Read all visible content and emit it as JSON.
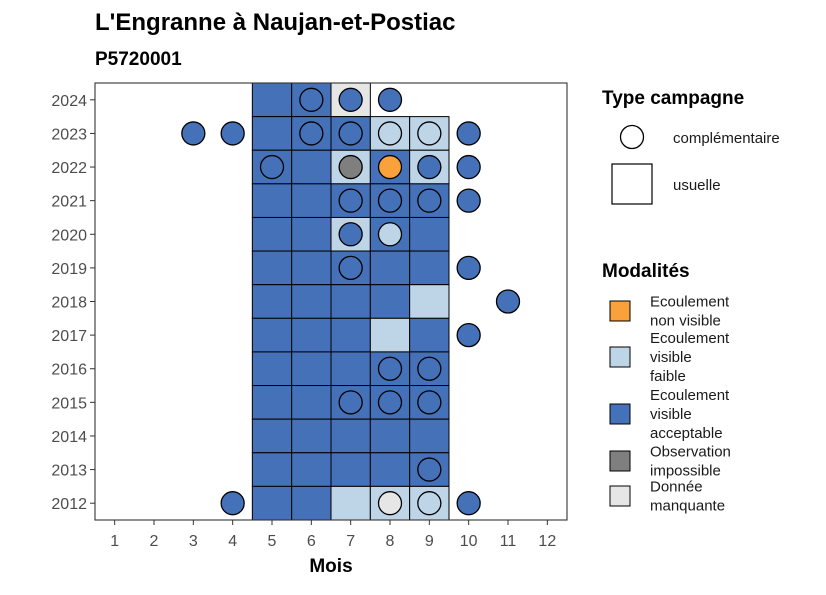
{
  "chart_data": {
    "type": "heatmap",
    "title": "L'Engranne à Naujan-et-Postiac",
    "subtitle": "P5720001",
    "xlabel": "Mois",
    "ylabel": "",
    "x_ticks": [
      1,
      2,
      3,
      4,
      5,
      6,
      7,
      8,
      9,
      10,
      11,
      12
    ],
    "y_ticks": [
      2012,
      2013,
      2014,
      2015,
      2016,
      2017,
      2018,
      2019,
      2020,
      2021,
      2022,
      2023,
      2024
    ],
    "xlim": [
      0.5,
      12.5
    ],
    "ylim": [
      2011.5,
      2024.5
    ],
    "grid": false,
    "colors": {
      "ecoulement_non_visible": "#f9a13a",
      "ecoulement_visible_faible": "#bed5e8",
      "ecoulement_visible_acceptable": "#4571b8",
      "observation_impossible": "#7f7f7f",
      "donnee_manquante": "#e6e6e6"
    },
    "legends": [
      {
        "title": "Type campagne",
        "items": [
          {
            "shape": "circle",
            "label": "complémentaire"
          },
          {
            "shape": "square",
            "label": "usuelle"
          }
        ]
      },
      {
        "title": "Modalités",
        "items": [
          {
            "key": "ecoulement_non_visible",
            "label_lines": [
              "Ecoulement",
              "non visible"
            ]
          },
          {
            "key": "ecoulement_visible_faible",
            "label_lines": [
              "Ecoulement",
              "visible",
              "faible"
            ]
          },
          {
            "key": "ecoulement_visible_acceptable",
            "label_lines": [
              "Ecoulement",
              "visible",
              "acceptable"
            ]
          },
          {
            "key": "observation_impossible",
            "label_lines": [
              "Observation",
              "impossible"
            ]
          },
          {
            "key": "donnee_manquante",
            "label_lines": [
              "Donnée",
              "manquante"
            ]
          }
        ]
      }
    ],
    "usuelle": [
      {
        "year": 2024,
        "month": 5,
        "m": "ecoulement_visible_acceptable"
      },
      {
        "year": 2024,
        "month": 6,
        "m": "ecoulement_visible_acceptable"
      },
      {
        "year": 2024,
        "month": 7,
        "m": "donnee_manquante"
      },
      {
        "year": 2023,
        "month": 5,
        "m": "ecoulement_visible_acceptable"
      },
      {
        "year": 2023,
        "month": 6,
        "m": "ecoulement_visible_acceptable"
      },
      {
        "year": 2023,
        "month": 7,
        "m": "ecoulement_visible_acceptable"
      },
      {
        "year": 2023,
        "month": 8,
        "m": "ecoulement_visible_faible"
      },
      {
        "year": 2023,
        "month": 9,
        "m": "ecoulement_visible_faible"
      },
      {
        "year": 2022,
        "month": 5,
        "m": "ecoulement_visible_acceptable"
      },
      {
        "year": 2022,
        "month": 6,
        "m": "ecoulement_visible_acceptable"
      },
      {
        "year": 2022,
        "month": 7,
        "m": "ecoulement_visible_faible"
      },
      {
        "year": 2022,
        "month": 8,
        "m": "ecoulement_visible_acceptable"
      },
      {
        "year": 2022,
        "month": 9,
        "m": "ecoulement_visible_faible"
      },
      {
        "year": 2021,
        "month": 5,
        "m": "ecoulement_visible_acceptable"
      },
      {
        "year": 2021,
        "month": 6,
        "m": "ecoulement_visible_acceptable"
      },
      {
        "year": 2021,
        "month": 7,
        "m": "ecoulement_visible_acceptable"
      },
      {
        "year": 2021,
        "month": 8,
        "m": "ecoulement_visible_acceptable"
      },
      {
        "year": 2021,
        "month": 9,
        "m": "ecoulement_visible_acceptable"
      },
      {
        "year": 2020,
        "month": 5,
        "m": "ecoulement_visible_acceptable"
      },
      {
        "year": 2020,
        "month": 6,
        "m": "ecoulement_visible_acceptable"
      },
      {
        "year": 2020,
        "month": 7,
        "m": "ecoulement_visible_faible"
      },
      {
        "year": 2020,
        "month": 8,
        "m": "ecoulement_visible_acceptable"
      },
      {
        "year": 2020,
        "month": 9,
        "m": "ecoulement_visible_acceptable"
      },
      {
        "year": 2019,
        "month": 5,
        "m": "ecoulement_visible_acceptable"
      },
      {
        "year": 2019,
        "month": 6,
        "m": "ecoulement_visible_acceptable"
      },
      {
        "year": 2019,
        "month": 7,
        "m": "ecoulement_visible_acceptable"
      },
      {
        "year": 2019,
        "month": 8,
        "m": "ecoulement_visible_acceptable"
      },
      {
        "year": 2019,
        "month": 9,
        "m": "ecoulement_visible_acceptable"
      },
      {
        "year": 2018,
        "month": 5,
        "m": "ecoulement_visible_acceptable"
      },
      {
        "year": 2018,
        "month": 6,
        "m": "ecoulement_visible_acceptable"
      },
      {
        "year": 2018,
        "month": 7,
        "m": "ecoulement_visible_acceptable"
      },
      {
        "year": 2018,
        "month": 8,
        "m": "ecoulement_visible_acceptable"
      },
      {
        "year": 2018,
        "month": 9,
        "m": "ecoulement_visible_faible"
      },
      {
        "year": 2017,
        "month": 5,
        "m": "ecoulement_visible_acceptable"
      },
      {
        "year": 2017,
        "month": 6,
        "m": "ecoulement_visible_acceptable"
      },
      {
        "year": 2017,
        "month": 7,
        "m": "ecoulement_visible_acceptable"
      },
      {
        "year": 2017,
        "month": 8,
        "m": "ecoulement_visible_faible"
      },
      {
        "year": 2017,
        "month": 9,
        "m": "ecoulement_visible_acceptable"
      },
      {
        "year": 2016,
        "month": 5,
        "m": "ecoulement_visible_acceptable"
      },
      {
        "year": 2016,
        "month": 6,
        "m": "ecoulement_visible_acceptable"
      },
      {
        "year": 2016,
        "month": 7,
        "m": "ecoulement_visible_acceptable"
      },
      {
        "year": 2016,
        "month": 8,
        "m": "ecoulement_visible_acceptable"
      },
      {
        "year": 2016,
        "month": 9,
        "m": "ecoulement_visible_acceptable"
      },
      {
        "year": 2015,
        "month": 5,
        "m": "ecoulement_visible_acceptable"
      },
      {
        "year": 2015,
        "month": 6,
        "m": "ecoulement_visible_acceptable"
      },
      {
        "year": 2015,
        "month": 7,
        "m": "ecoulement_visible_acceptable"
      },
      {
        "year": 2015,
        "month": 8,
        "m": "ecoulement_visible_acceptable"
      },
      {
        "year": 2015,
        "month": 9,
        "m": "ecoulement_visible_acceptable"
      },
      {
        "year": 2014,
        "month": 5,
        "m": "ecoulement_visible_acceptable"
      },
      {
        "year": 2014,
        "month": 6,
        "m": "ecoulement_visible_acceptable"
      },
      {
        "year": 2014,
        "month": 7,
        "m": "ecoulement_visible_acceptable"
      },
      {
        "year": 2014,
        "month": 8,
        "m": "ecoulement_visible_acceptable"
      },
      {
        "year": 2014,
        "month": 9,
        "m": "ecoulement_visible_acceptable"
      },
      {
        "year": 2013,
        "month": 5,
        "m": "ecoulement_visible_acceptable"
      },
      {
        "year": 2013,
        "month": 6,
        "m": "ecoulement_visible_acceptable"
      },
      {
        "year": 2013,
        "month": 7,
        "m": "ecoulement_visible_acceptable"
      },
      {
        "year": 2013,
        "month": 8,
        "m": "ecoulement_visible_acceptable"
      },
      {
        "year": 2013,
        "month": 9,
        "m": "ecoulement_visible_acceptable"
      },
      {
        "year": 2012,
        "month": 5,
        "m": "ecoulement_visible_acceptable"
      },
      {
        "year": 2012,
        "month": 6,
        "m": "ecoulement_visible_acceptable"
      },
      {
        "year": 2012,
        "month": 7,
        "m": "ecoulement_visible_faible"
      },
      {
        "year": 2012,
        "month": 8,
        "m": "ecoulement_visible_faible"
      },
      {
        "year": 2012,
        "month": 9,
        "m": "ecoulement_visible_faible"
      }
    ],
    "complementaire": [
      {
        "year": 2024,
        "month": 6,
        "m": "ecoulement_visible_acceptable"
      },
      {
        "year": 2024,
        "month": 7,
        "m": "ecoulement_visible_acceptable"
      },
      {
        "year": 2024,
        "month": 8,
        "m": "ecoulement_visible_acceptable"
      },
      {
        "year": 2023,
        "month": 3,
        "m": "ecoulement_visible_acceptable"
      },
      {
        "year": 2023,
        "month": 4,
        "m": "ecoulement_visible_acceptable"
      },
      {
        "year": 2023,
        "month": 6,
        "m": "ecoulement_visible_acceptable"
      },
      {
        "year": 2023,
        "month": 7,
        "m": "ecoulement_visible_acceptable"
      },
      {
        "year": 2023,
        "month": 8,
        "m": "ecoulement_visible_faible"
      },
      {
        "year": 2023,
        "month": 9,
        "m": "ecoulement_visible_faible"
      },
      {
        "year": 2023,
        "month": 10,
        "m": "ecoulement_visible_acceptable"
      },
      {
        "year": 2022,
        "month": 5,
        "m": "ecoulement_visible_acceptable"
      },
      {
        "year": 2022,
        "month": 7,
        "m": "observation_impossible"
      },
      {
        "year": 2022,
        "month": 8,
        "m": "ecoulement_non_visible"
      },
      {
        "year": 2022,
        "month": 9,
        "m": "ecoulement_visible_acceptable"
      },
      {
        "year": 2022,
        "month": 10,
        "m": "ecoulement_visible_acceptable"
      },
      {
        "year": 2021,
        "month": 7,
        "m": "ecoulement_visible_acceptable"
      },
      {
        "year": 2021,
        "month": 8,
        "m": "ecoulement_visible_acceptable"
      },
      {
        "year": 2021,
        "month": 9,
        "m": "ecoulement_visible_acceptable"
      },
      {
        "year": 2021,
        "month": 10,
        "m": "ecoulement_visible_acceptable"
      },
      {
        "year": 2020,
        "month": 7,
        "m": "ecoulement_visible_acceptable"
      },
      {
        "year": 2020,
        "month": 8,
        "m": "ecoulement_visible_faible"
      },
      {
        "year": 2019,
        "month": 7,
        "m": "ecoulement_visible_acceptable"
      },
      {
        "year": 2019,
        "month": 10,
        "m": "ecoulement_visible_acceptable"
      },
      {
        "year": 2018,
        "month": 11,
        "m": "ecoulement_visible_acceptable"
      },
      {
        "year": 2017,
        "month": 10,
        "m": "ecoulement_visible_acceptable"
      },
      {
        "year": 2016,
        "month": 8,
        "m": "ecoulement_visible_acceptable"
      },
      {
        "year": 2016,
        "month": 9,
        "m": "ecoulement_visible_acceptable"
      },
      {
        "year": 2015,
        "month": 7,
        "m": "ecoulement_visible_acceptable"
      },
      {
        "year": 2015,
        "month": 8,
        "m": "ecoulement_visible_acceptable"
      },
      {
        "year": 2015,
        "month": 9,
        "m": "ecoulement_visible_acceptable"
      },
      {
        "year": 2013,
        "month": 9,
        "m": "ecoulement_visible_acceptable"
      },
      {
        "year": 2012,
        "month": 4,
        "m": "ecoulement_visible_acceptable"
      },
      {
        "year": 2012,
        "month": 8,
        "m": "donnee_manquante"
      },
      {
        "year": 2012,
        "month": 9,
        "m": "ecoulement_visible_faible"
      },
      {
        "year": 2012,
        "month": 10,
        "m": "ecoulement_visible_acceptable"
      }
    ]
  }
}
